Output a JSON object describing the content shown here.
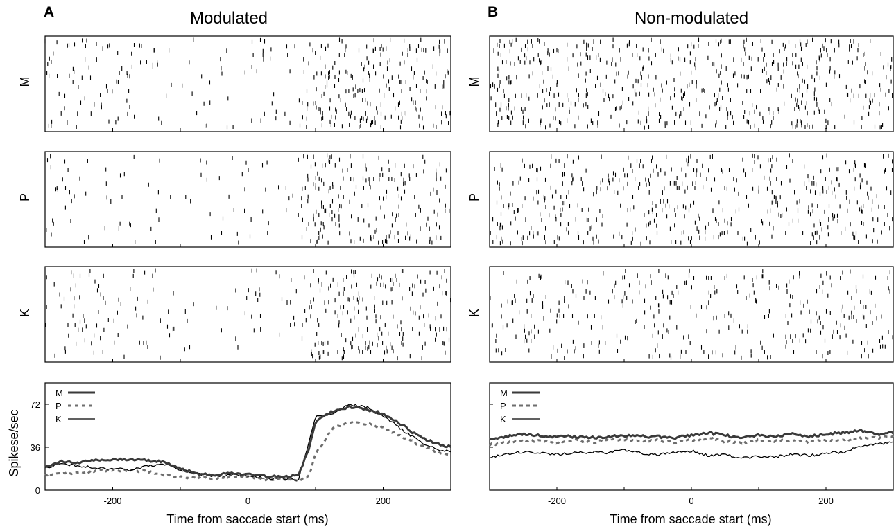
{
  "figure": {
    "panels": [
      {
        "letter": "A",
        "title": "Modulated",
        "xlabel": "Time from saccade start (ms)"
      },
      {
        "letter": "B",
        "title": "Non-modulated",
        "xlabel": "Time from saccade start (ms)"
      }
    ],
    "ylabel": "Spikese/sec"
  },
  "chart_data": [
    {
      "type": "raster",
      "panel": "A",
      "ylabel": "M",
      "xlim": [
        -300,
        300
      ],
      "xticks": [
        -200,
        -100,
        0,
        100,
        200
      ],
      "trials": 20,
      "rate_profile": {
        "x": [
          -300,
          -150,
          -100,
          60,
          100,
          300
        ],
        "spikes_per_sec": [
          22,
          22,
          12,
          10,
          65,
          40
        ]
      }
    },
    {
      "type": "raster",
      "panel": "A",
      "ylabel": "P",
      "xlim": [
        -300,
        300
      ],
      "xticks": [
        -200,
        -100,
        0,
        100,
        200
      ],
      "trials": 20,
      "rate_profile": {
        "x": [
          -300,
          -150,
          -100,
          60,
          100,
          300
        ],
        "spikes_per_sec": [
          14,
          14,
          10,
          8,
          55,
          35
        ]
      }
    },
    {
      "type": "raster",
      "panel": "A",
      "ylabel": "K",
      "xlim": [
        -300,
        300
      ],
      "xticks": [
        -200,
        -100,
        0,
        100,
        200
      ],
      "trials": 20,
      "rate_profile": {
        "x": [
          -300,
          -150,
          -100,
          60,
          100,
          300
        ],
        "spikes_per_sec": [
          20,
          20,
          10,
          8,
          62,
          38
        ]
      }
    },
    {
      "type": "line",
      "panel": "A",
      "xlim": [
        -300,
        300
      ],
      "ylim": [
        0,
        90
      ],
      "xticks": [
        -200,
        -100,
        0,
        100,
        200
      ],
      "xticklabels": [
        "-200",
        "",
        "0",
        "",
        "200"
      ],
      "yticks": [
        0,
        36,
        72
      ],
      "yticklabels": [
        "0",
        "36",
        "72"
      ],
      "ylabel": "Spikese/sec",
      "legend_position": "top-left",
      "x": [
        -300,
        -275,
        -250,
        -225,
        -200,
        -175,
        -150,
        -125,
        -100,
        -75,
        -50,
        -25,
        0,
        25,
        50,
        75,
        90,
        100,
        125,
        150,
        175,
        200,
        225,
        250,
        275,
        300
      ],
      "series": [
        {
          "name": "M",
          "style": "thick",
          "values": [
            20,
            24,
            23,
            25,
            26,
            25,
            25,
            24,
            18,
            14,
            13,
            14,
            13,
            12,
            11,
            12,
            35,
            58,
            66,
            70,
            68,
            64,
            56,
            46,
            40,
            36
          ]
        },
        {
          "name": "P",
          "style": "dashed",
          "values": [
            13,
            15,
            14,
            16,
            17,
            16,
            16,
            13,
            11,
            10,
            10,
            11,
            11,
            9,
            9,
            8,
            12,
            30,
            52,
            57,
            56,
            52,
            46,
            39,
            33,
            29
          ]
        },
        {
          "name": "K",
          "style": "thin",
          "values": [
            19,
            22,
            20,
            19,
            18,
            17,
            20,
            22,
            17,
            14,
            12,
            13,
            12,
            10,
            10,
            9,
            40,
            62,
            64,
            72,
            70,
            62,
            52,
            42,
            35,
            32
          ]
        }
      ]
    },
    {
      "type": "raster",
      "panel": "B",
      "ylabel": "M",
      "xlim": [
        -300,
        300
      ],
      "xticks": [
        -200,
        -100,
        0,
        100,
        200
      ],
      "trials": 20,
      "rate_profile": {
        "x": [
          -300,
          300
        ],
        "spikes_per_sec": [
          45,
          45
        ]
      }
    },
    {
      "type": "raster",
      "panel": "B",
      "ylabel": "P",
      "xlim": [
        -300,
        300
      ],
      "xticks": [
        -200,
        -100,
        0,
        100,
        200
      ],
      "trials": 20,
      "rate_profile": {
        "x": [
          -300,
          300
        ],
        "spikes_per_sec": [
          40,
          40
        ]
      }
    },
    {
      "type": "raster",
      "panel": "B",
      "ylabel": "K",
      "xlim": [
        -300,
        300
      ],
      "xticks": [
        -200,
        -100,
        0,
        100,
        200
      ],
      "trials": 18,
      "rate_profile": {
        "x": [
          -300,
          300
        ],
        "spikes_per_sec": [
          32,
          32
        ]
      }
    },
    {
      "type": "line",
      "panel": "B",
      "xlim": [
        -300,
        300
      ],
      "ylim": [
        0,
        90
      ],
      "xticks": [
        -200,
        -100,
        0,
        100,
        200
      ],
      "xticklabels": [
        "-200",
        "",
        "0",
        "",
        "200"
      ],
      "yticks": [
        0,
        36,
        72
      ],
      "yticklabels": [
        "",
        "",
        ""
      ],
      "legend_position": "top-left",
      "x": [
        -300,
        -275,
        -250,
        -225,
        -200,
        -175,
        -150,
        -125,
        -100,
        -75,
        -50,
        -25,
        0,
        25,
        50,
        75,
        100,
        125,
        150,
        175,
        200,
        225,
        250,
        275,
        300
      ],
      "series": [
        {
          "name": "M",
          "style": "thick",
          "values": [
            43,
            45,
            47,
            46,
            45,
            45,
            44,
            45,
            46,
            45,
            45,
            44,
            46,
            48,
            46,
            44,
            46,
            45,
            47,
            45,
            47,
            48,
            50,
            47,
            48
          ]
        },
        {
          "name": "P",
          "style": "dashed",
          "values": [
            38,
            40,
            42,
            41,
            40,
            42,
            40,
            42,
            42,
            41,
            42,
            40,
            42,
            44,
            41,
            40,
            42,
            41,
            42,
            40,
            42,
            42,
            44,
            44,
            45
          ]
        },
        {
          "name": "K",
          "style": "thin",
          "values": [
            28,
            30,
            32,
            31,
            30,
            31,
            32,
            31,
            34,
            31,
            30,
            32,
            33,
            29,
            30,
            27,
            28,
            28,
            30,
            29,
            31,
            32,
            37,
            39,
            40
          ]
        }
      ]
    }
  ]
}
